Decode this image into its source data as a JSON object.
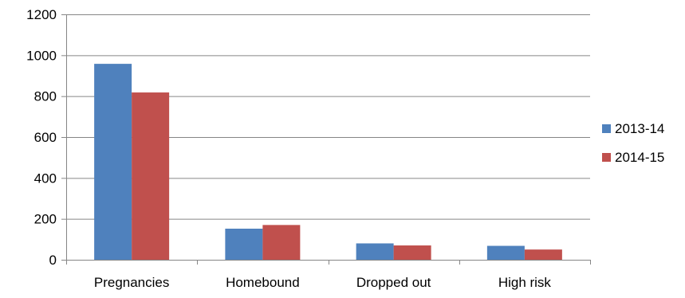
{
  "chart_data": {
    "type": "bar",
    "title": "",
    "xlabel": "",
    "ylabel": "",
    "categories": [
      "Pregnancies",
      "Homebound",
      "Dropped out",
      "High risk"
    ],
    "series": [
      {
        "name": "2013-14",
        "color": "#4F81BD",
        "values": [
          958,
          152,
          80,
          68
        ]
      },
      {
        "name": "2014-15",
        "color": "#C0504D",
        "values": [
          818,
          170,
          70,
          50
        ]
      }
    ],
    "ylim": [
      0,
      1200
    ],
    "yticks": [
      0,
      200,
      400,
      600,
      800,
      1000,
      1200
    ],
    "grid": true,
    "legend_position": "right"
  }
}
